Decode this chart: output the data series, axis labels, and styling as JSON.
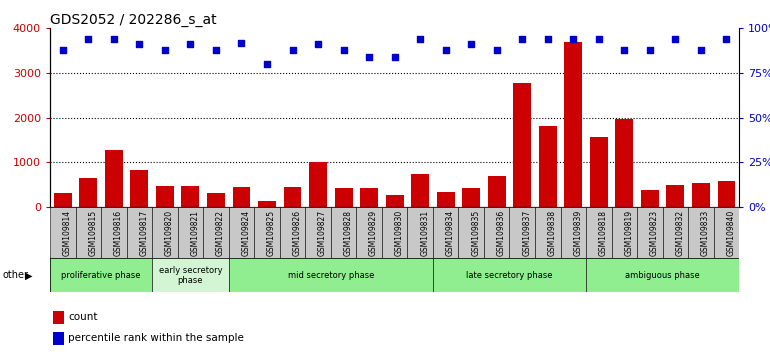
{
  "title": "GDS2052 / 202286_s_at",
  "samples": [
    "GSM109814",
    "GSM109815",
    "GSM109816",
    "GSM109817",
    "GSM109820",
    "GSM109821",
    "GSM109822",
    "GSM109824",
    "GSM109825",
    "GSM109826",
    "GSM109827",
    "GSM109828",
    "GSM109829",
    "GSM109830",
    "GSM109831",
    "GSM109834",
    "GSM109835",
    "GSM109836",
    "GSM109837",
    "GSM109838",
    "GSM109839",
    "GSM109818",
    "GSM109819",
    "GSM109823",
    "GSM109832",
    "GSM109833",
    "GSM109840"
  ],
  "counts": [
    310,
    640,
    1280,
    820,
    470,
    470,
    320,
    450,
    130,
    460,
    1020,
    420,
    420,
    260,
    730,
    340,
    420,
    700,
    2780,
    1820,
    3700,
    1570,
    1960,
    390,
    490,
    550,
    590
  ],
  "percentiles": [
    88,
    94,
    94,
    91,
    88,
    91,
    88,
    92,
    80,
    88,
    91,
    88,
    84,
    84,
    94,
    88,
    91,
    88,
    94,
    94,
    94,
    94,
    88,
    88,
    94,
    88,
    94
  ],
  "phases": [
    {
      "name": "proliferative phase",
      "color": "#90ee90",
      "start": 0,
      "end": 4
    },
    {
      "name": "early secretory\nphase",
      "color": "#d4f5d4",
      "start": 4,
      "end": 7
    },
    {
      "name": "mid secretory phase",
      "color": "#90ee90",
      "start": 7,
      "end": 15
    },
    {
      "name": "late secretory phase",
      "color": "#90ee90",
      "start": 15,
      "end": 21
    },
    {
      "name": "ambiguous phase",
      "color": "#90ee90",
      "start": 21,
      "end": 27
    }
  ],
  "bar_color": "#cc0000",
  "dot_color": "#0000cc",
  "ylim_left": [
    0,
    4000
  ],
  "ylim_right": [
    0,
    100
  ],
  "yticks_left": [
    0,
    1000,
    2000,
    3000,
    4000
  ],
  "yticks_right": [
    0,
    25,
    50,
    75,
    100
  ],
  "ylabel_left_color": "#cc0000",
  "ylabel_right_color": "#0000cc",
  "xtick_bg_color": "#c8c8c8",
  "plot_bg_color": "#ffffff"
}
